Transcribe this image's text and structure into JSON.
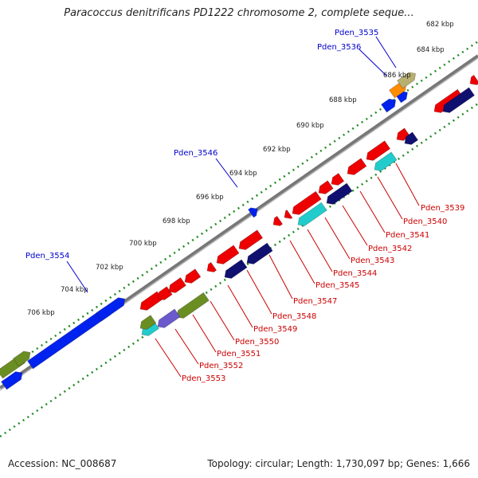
{
  "title": "Paracoccus denitrificans PD1222 chromosome 2, complete seque...",
  "footer": {
    "accession": "Accession: NC_008687",
    "stats": "Topology: circular; Length: 1,730,097 bp; Genes: 1,666"
  },
  "ticks": [
    "682 kbp",
    "684 kbp",
    "686 kbp",
    "688 kbp",
    "690 kbp",
    "692 kbp",
    "694 kbp",
    "696 kbp",
    "698 kbp",
    "700 kbp",
    "702 kbp",
    "704 kbp",
    "706 kbp"
  ],
  "forward_labels": [
    "Pden_3535",
    "Pden_3536",
    "Pden_3546",
    "Pden_3554"
  ],
  "reverse_labels": [
    "Pden_3539",
    "Pden_3540",
    "Pden_3541",
    "Pden_3542",
    "Pden_3543",
    "Pden_3544",
    "Pden_3545",
    "Pden_3547",
    "Pden_3548",
    "Pden_3549",
    "Pden_3550",
    "Pden_3551",
    "Pden_3552",
    "Pden_3553"
  ],
  "colors": {
    "forward_label": "#0000cc",
    "reverse_label": "#cc0000",
    "backbone": "#888888",
    "dots": "#228b22",
    "gene_red": "#ee0000",
    "gene_blue": "#0022ee",
    "gene_navy": "#101070",
    "gene_olive": "#6b8e23",
    "gene_cyan": "#22cccc",
    "gene_purple": "#6a5acd",
    "gene_orange": "#ff8c00",
    "gene_khaki": "#b8b070"
  }
}
